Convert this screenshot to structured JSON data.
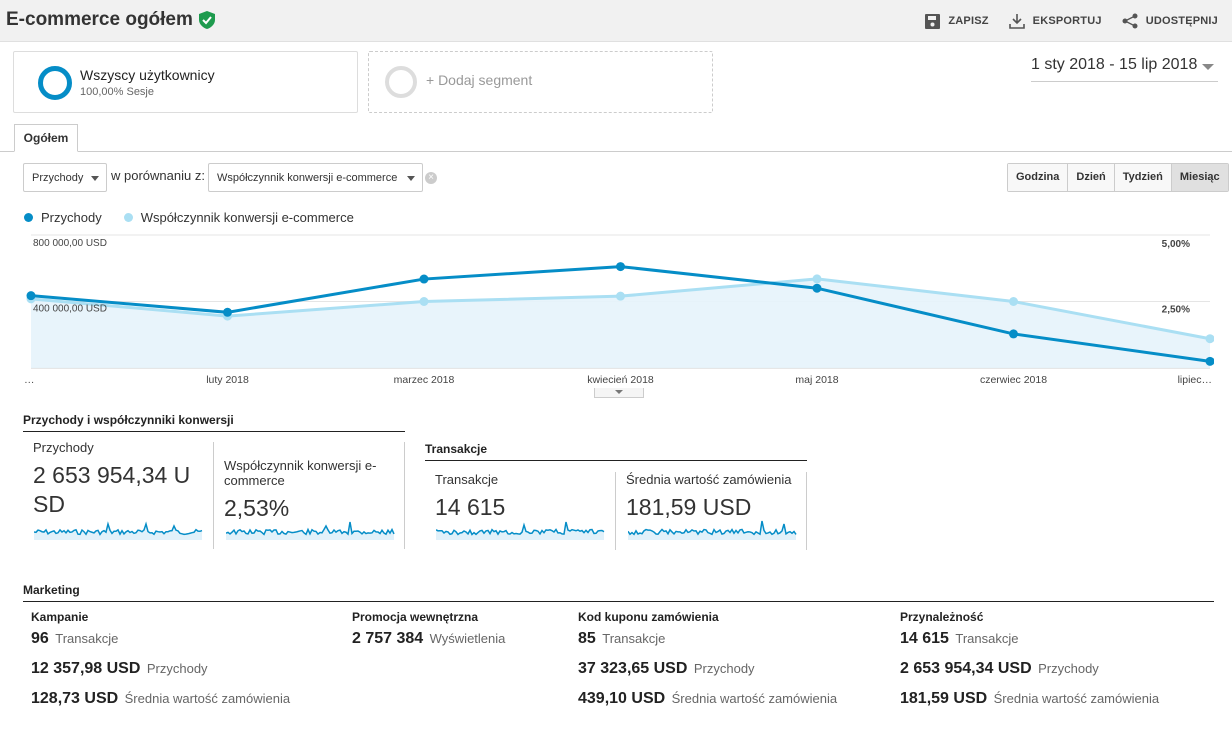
{
  "header": {
    "title": "E-commerce ogółem",
    "save": "ZAPISZ",
    "export": "EKSPORTUJ",
    "share": "UDOSTĘPNIJ"
  },
  "segments": {
    "s1_name": "Wszyscy użytkownicy",
    "s1_sub": "100,00% Sesje",
    "add": "+ Dodaj segment"
  },
  "date_range": "1 sty 2018 - 15 lip 2018",
  "tab": "Ogółem",
  "controls": {
    "metric1": "Przychody",
    "compare_label": "w porównaniu z:",
    "metric2": "Współczynnik konwersji e-commerce"
  },
  "granularity": [
    "Godzina",
    "Dzień",
    "Tydzień",
    "Miesiąc"
  ],
  "legend": {
    "s1": "Przychody",
    "s2": "Współczynnik konwersji e-commerce"
  },
  "colors": {
    "primary": "#058dc7",
    "secondary": "#aadff3",
    "fill": "#e6f3fb",
    "check": "#1e9b4e"
  },
  "chart_data": {
    "type": "line",
    "x": [
      "…",
      "luty 2018",
      "marzec 2018",
      "kwiecień 2018",
      "maj 2018",
      "czerwiec 2018",
      "lipiec…"
    ],
    "y_left_ticks": [
      "800 000,00 USD",
      "400 000,00 USD"
    ],
    "y_right_ticks": [
      "5,00%",
      "2,50%"
    ],
    "ylim_left": [
      0,
      800000
    ],
    "ylim_right": [
      0,
      5
    ],
    "series": [
      {
        "name": "Przychody",
        "axis": "left",
        "values": [
          435000,
          335000,
          535000,
          610000,
          480000,
          205000,
          40000
        ]
      },
      {
        "name": "Współczynnik konwersji e-commerce",
        "axis": "right",
        "values": [
          2.6,
          1.95,
          2.5,
          2.7,
          3.35,
          2.5,
          1.1
        ]
      }
    ],
    "grid": true
  },
  "summary": {
    "section1": "Przychody i współczynniki konwersji",
    "section2": "Transakcje",
    "cards": [
      {
        "label": "Przychody",
        "value": "2 653 954,34 U SD"
      },
      {
        "label": "Współczynnik konwersji e-commerce",
        "value": "2,53%"
      },
      {
        "label": "Transakcje",
        "value": "14 615"
      },
      {
        "label": "Średnia wartość zamówienia",
        "value": "181,59 USD"
      }
    ]
  },
  "marketing": {
    "title": "Marketing",
    "columns": [
      {
        "title": "Kampanie",
        "rows": [
          {
            "v": "96",
            "u": "Transakcje"
          },
          {
            "v": "12 357,98 USD",
            "u": "Przychody"
          },
          {
            "v": "128,73 USD",
            "u": "Średnia wartość zamówienia"
          }
        ]
      },
      {
        "title": "Promocja wewnętrzna",
        "rows": [
          {
            "v": "2 757 384",
            "u": "Wyświetlenia"
          }
        ]
      },
      {
        "title": "Kod kuponu zamówienia",
        "rows": [
          {
            "v": "85",
            "u": "Transakcje"
          },
          {
            "v": "37 323,65 USD",
            "u": "Przychody"
          },
          {
            "v": "439,10 USD",
            "u": "Średnia wartość zamówienia"
          }
        ]
      },
      {
        "title": "Przynależność",
        "rows": [
          {
            "v": "14 615",
            "u": "Transakcje"
          },
          {
            "v": "2 653 954,34 USD",
            "u": "Przychody"
          },
          {
            "v": "181,59 USD",
            "u": "Średnia wartość zamówienia"
          }
        ]
      }
    ]
  }
}
